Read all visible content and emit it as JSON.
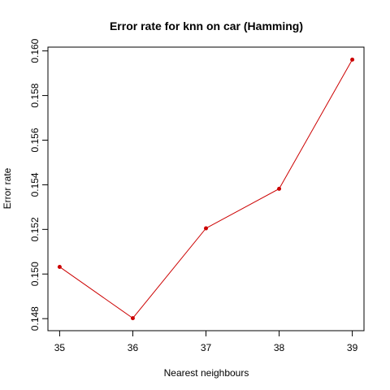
{
  "chart_data": {
    "type": "line",
    "title": "Error rate for knn on car (Hamming)",
    "xlabel": "Nearest neighbours",
    "ylabel": "Error rate",
    "x": [
      35,
      36,
      37,
      38,
      39
    ],
    "y": [
      0.15032,
      0.14802,
      0.15205,
      0.15382,
      0.15961
    ],
    "xlim": [
      34.84,
      39.16
    ],
    "ylim": [
      0.14746,
      0.16017
    ],
    "xticks": [
      "35",
      "36",
      "37",
      "38",
      "39"
    ],
    "yticks": [
      "0.148",
      "0.150",
      "0.152",
      "0.154",
      "0.156",
      "0.158",
      "0.160"
    ],
    "ytick_values": [
      0.148,
      0.15,
      0.152,
      0.154,
      0.156,
      0.158,
      0.16
    ],
    "series_color": "#cc0000",
    "grid": false,
    "legend": "none"
  }
}
